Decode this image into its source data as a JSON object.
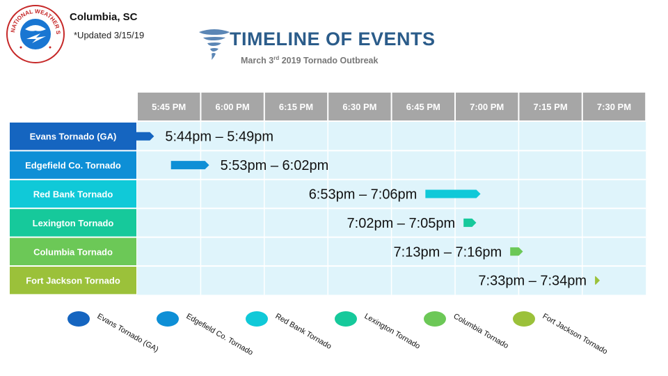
{
  "header": {
    "office": "Columbia, SC",
    "updated": "*Updated 3/15/19",
    "title": "TIMELINE OF EVENTS",
    "subtitle_pre": "March 3",
    "subtitle_sup": "rd",
    "subtitle_post": " 2019 Tornado Outbreak",
    "logo_text": "NATIONAL WEATHER SERVICE"
  },
  "colors": {
    "header_cell": "#a6a6a6",
    "grid_bg": "#dff4fb",
    "grid_line": "#ffffff"
  },
  "chart_data": {
    "type": "gantt",
    "x_ticks": [
      "5:45 PM",
      "6:00 PM",
      "6:15 PM",
      "6:30 PM",
      "6:45 PM",
      "7:00 PM",
      "7:15 PM",
      "7:30 PM"
    ],
    "x_tick_minutes": [
      1065,
      1080,
      1095,
      1110,
      1125,
      1140,
      1155,
      1170
    ],
    "x_range_minutes": [
      1065,
      1185
    ],
    "series": [
      {
        "name": "Evans Tornado (GA)",
        "range_label": "5:44pm – 5:49pm",
        "start": "17:44",
        "end": "17:49",
        "color": "#1565c0"
      },
      {
        "name": "Edgefield Co. Tornado",
        "range_label": "5:53pm – 6:02pm",
        "start": "17:53",
        "end": "18:02",
        "color": "#0e8fd6"
      },
      {
        "name": "Red Bank Tornado",
        "range_label": "6:53pm – 7:06pm",
        "start": "18:53",
        "end": "19:06",
        "color": "#10c9d8"
      },
      {
        "name": "Lexington Tornado",
        "range_label": "7:02pm – 7:05pm",
        "start": "19:02",
        "end": "19:05",
        "color": "#16c99b"
      },
      {
        "name": "Columbia Tornado",
        "range_label": "7:13pm – 7:16pm",
        "start": "19:13",
        "end": "19:16",
        "color": "#6cc857"
      },
      {
        "name": "Fort Jackson Tornado",
        "range_label": "7:33pm – 7:34pm",
        "start": "19:33",
        "end": "19:34",
        "color": "#9bc13a"
      }
    ],
    "legend": {
      "placement": "bottom",
      "entries": [
        "Evans Tornado (GA)",
        "Edgefield Co. Tornado",
        "Red Bank Tornado",
        "Lexington Tornado",
        "Columbia Tornado",
        "Fort Jackson Tornado"
      ]
    }
  }
}
